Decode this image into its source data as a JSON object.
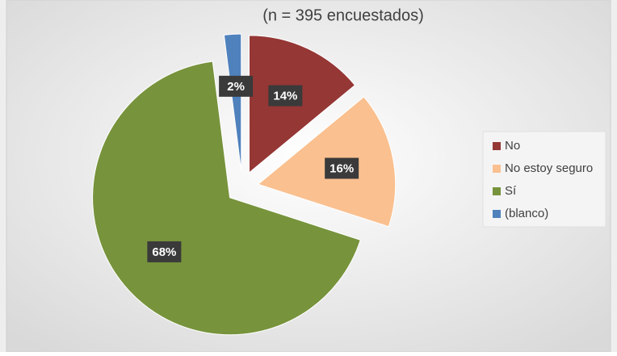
{
  "chart_data": {
    "type": "pie",
    "subtitle": "(n = 395 encuestados)",
    "categories": [
      "No",
      "No estoy seguro",
      "Sí",
      "(blanco)"
    ],
    "values": [
      14,
      16,
      68,
      2
    ],
    "value_labels": [
      "14%",
      "16%",
      "68%",
      "2%"
    ],
    "colors": [
      "#953735",
      "#fac090",
      "#77933c",
      "#4f81bd"
    ],
    "legend": "right"
  }
}
